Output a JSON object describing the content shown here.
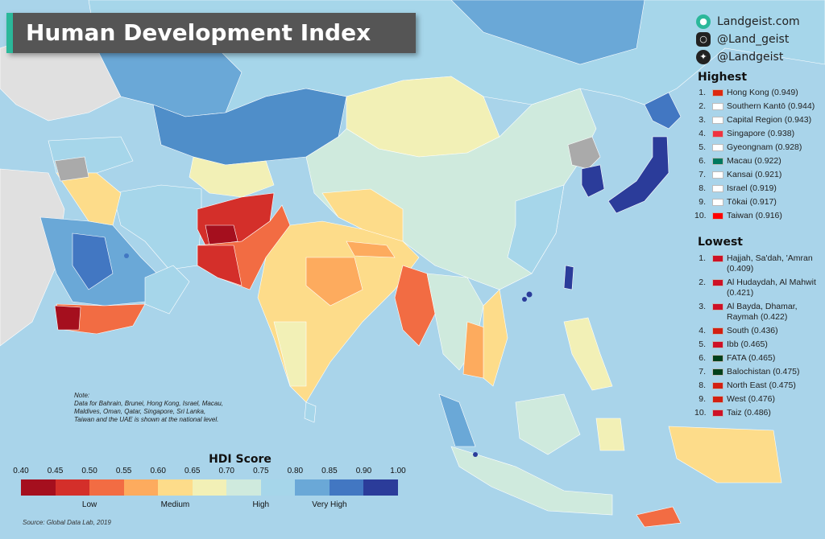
{
  "title": "Human Development Index",
  "social": [
    {
      "icon": "globe-icon",
      "text": "Landgeist.com",
      "color": "#2bb89a"
    },
    {
      "icon": "instagram-icon",
      "text": "@Land_geist",
      "color": "#222222"
    },
    {
      "icon": "twitter-icon",
      "text": "@Landgeist",
      "color": "#222222"
    }
  ],
  "highest": {
    "heading": "Highest",
    "items": [
      {
        "rank": "1.",
        "name": "Hong Kong",
        "score": "0.949",
        "flag": "#de2910"
      },
      {
        "rank": "2.",
        "name": "Southern Kantō",
        "score": "0.944",
        "flag": "#ffffff"
      },
      {
        "rank": "3.",
        "name": "Capital Region",
        "score": "0.943",
        "flag": "#ffffff"
      },
      {
        "rank": "4.",
        "name": "Singapore",
        "score": "0.938",
        "flag": "#ef3340"
      },
      {
        "rank": "5.",
        "name": "Gyeongnam",
        "score": "0.928",
        "flag": "#ffffff"
      },
      {
        "rank": "6.",
        "name": "Macau",
        "score": "0.922",
        "flag": "#00785e"
      },
      {
        "rank": "7.",
        "name": "Kansai",
        "score": "0.921",
        "flag": "#ffffff"
      },
      {
        "rank": "8.",
        "name": "Israel",
        "score": "0.919",
        "flag": "#ffffff"
      },
      {
        "rank": "9.",
        "name": "Tōkai",
        "score": "0.917",
        "flag": "#ffffff"
      },
      {
        "rank": "10.",
        "name": "Taiwan",
        "score": "0.916",
        "flag": "#fe0000"
      }
    ]
  },
  "lowest": {
    "heading": "Lowest",
    "items": [
      {
        "rank": "1.",
        "name": "Hajjah, Sa'dah, 'Amran",
        "score": "0.409",
        "flag": "#ce1126"
      },
      {
        "rank": "2.",
        "name": "Al Hudaydah, Al Mahwit",
        "score": "0.421",
        "flag": "#ce1126"
      },
      {
        "rank": "3.",
        "name": "Al Bayda, Dhamar, Raymah",
        "score": "0.422",
        "flag": "#ce1126"
      },
      {
        "rank": "4.",
        "name": "South",
        "score": "0.436",
        "flag": "#d32011"
      },
      {
        "rank": "5.",
        "name": "Ibb",
        "score": "0.465",
        "flag": "#ce1126"
      },
      {
        "rank": "6.",
        "name": "FATA",
        "score": "0.465",
        "flag": "#01411c"
      },
      {
        "rank": "7.",
        "name": "Balochistan",
        "score": "0.475",
        "flag": "#01411c"
      },
      {
        "rank": "8.",
        "name": "North East",
        "score": "0.475",
        "flag": "#d32011"
      },
      {
        "rank": "9.",
        "name": "West",
        "score": "0.476",
        "flag": "#d32011"
      },
      {
        "rank": "10.",
        "name": "Taiz",
        "score": "0.486",
        "flag": "#ce1126"
      }
    ]
  },
  "note": {
    "heading": "Note:",
    "text": "Data for Bahrain, Brunei, Hong Kong, Israel, Macau, Maldives, Oman, Qatar, Singapore, Sri Lanka, Taiwan and the UAE is shown at the national level."
  },
  "legend": {
    "title": "HDI Score",
    "ticks": [
      "0.40",
      "0.45",
      "0.50",
      "0.55",
      "0.60",
      "0.65",
      "0.70",
      "0.75",
      "0.80",
      "0.85",
      "0.90",
      "1.00"
    ],
    "colors": [
      "#a50f1e",
      "#d42f2a",
      "#f26c43",
      "#fdab5e",
      "#fddc8a",
      "#f2f0b6",
      "#cfeadd",
      "#a6d6ea",
      "#6aa8d7",
      "#4277c2",
      "#2b3c9a"
    ],
    "categories": [
      {
        "label": "Low",
        "at": 0.5
      },
      {
        "label": "Medium",
        "at": 0.625
      },
      {
        "label": "High",
        "at": 0.75
      },
      {
        "label": "Very High",
        "at": 0.85
      }
    ]
  },
  "source": "Source: Global Data Lab, 2019",
  "palette": {
    "sea": "#a9d4ea",
    "no_data": "#aaaaaa",
    "outside": "#e0e0e0",
    "accent": "#2bb89a"
  }
}
